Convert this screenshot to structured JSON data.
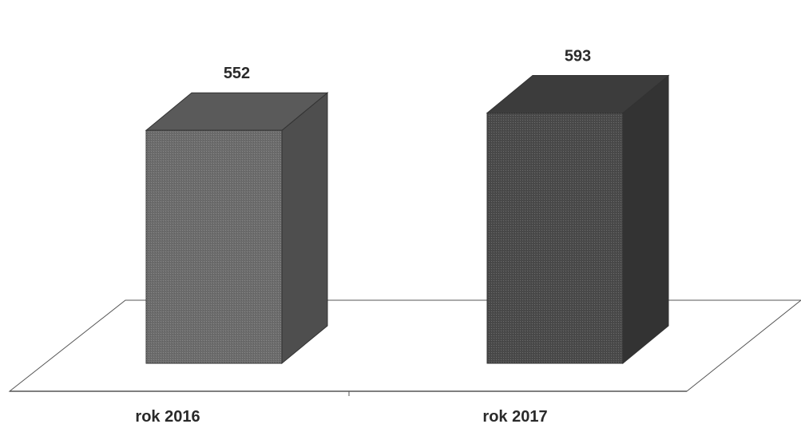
{
  "chart_data": {
    "type": "bar",
    "style": "3d-column",
    "categories": [
      "rok 2016",
      "rok 2017"
    ],
    "values": [
      552,
      593
    ],
    "data_labels": [
      "552",
      "593"
    ],
    "title": "",
    "xlabel": "",
    "ylabel": "",
    "ylim": [
      0,
      650
    ],
    "grid": false,
    "legend": "none",
    "colors": {
      "bar_front": [
        "#6c6c6c",
        "#4a4a4a"
      ],
      "bar_top": [
        "#5a5a5a",
        "#3c3c3c"
      ],
      "bar_side": [
        "#4e4e4e",
        "#333333"
      ],
      "floor_stroke": "#555555",
      "text": "#2a2a2a"
    }
  }
}
